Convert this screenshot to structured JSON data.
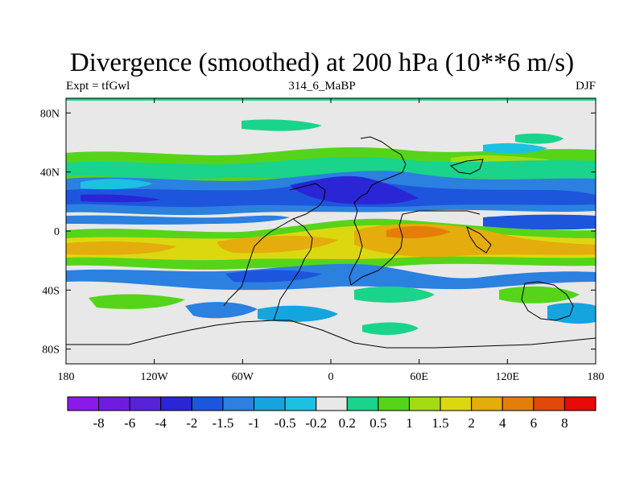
{
  "title": "Divergence (smoothed) at 200 hPa (10**6 m/s)",
  "experiment_label": "Expt = tfGwl",
  "case_label": "314_6_MaBP",
  "season_label": "DJF",
  "lat_ticks": [
    {
      "label": "80N",
      "value": 80
    },
    {
      "label": "40N",
      "value": 40
    },
    {
      "label": "0",
      "value": 0
    },
    {
      "label": "40S",
      "value": -40
    },
    {
      "label": "80S",
      "value": -80
    }
  ],
  "lon_ticks": [
    {
      "label": "180",
      "value": -180
    },
    {
      "label": "120W",
      "value": -120
    },
    {
      "label": "60W",
      "value": -60
    },
    {
      "label": "0",
      "value": 0
    },
    {
      "label": "60E",
      "value": 60
    },
    {
      "label": "120E",
      "value": 120
    },
    {
      "label": "180",
      "value": 180
    }
  ],
  "colorbar": {
    "colors": [
      "#8a1aea",
      "#6e1de0",
      "#5722d8",
      "#2a26d6",
      "#1d56dc",
      "#2b80e0",
      "#15a4de",
      "#1cc1e2",
      "#e8e8e8",
      "#19d48a",
      "#56d41a",
      "#a3dc14",
      "#dcd810",
      "#e4ac0c",
      "#e37f08",
      "#e0480c",
      "#e60a0a"
    ],
    "labels": [
      "-8",
      "-6",
      "-4",
      "-2",
      "-1.5",
      "-1",
      "-0.5",
      "-0.2",
      "0.2",
      "0.5",
      "1",
      "1.5",
      "2",
      "4",
      "6",
      "8"
    ]
  }
}
